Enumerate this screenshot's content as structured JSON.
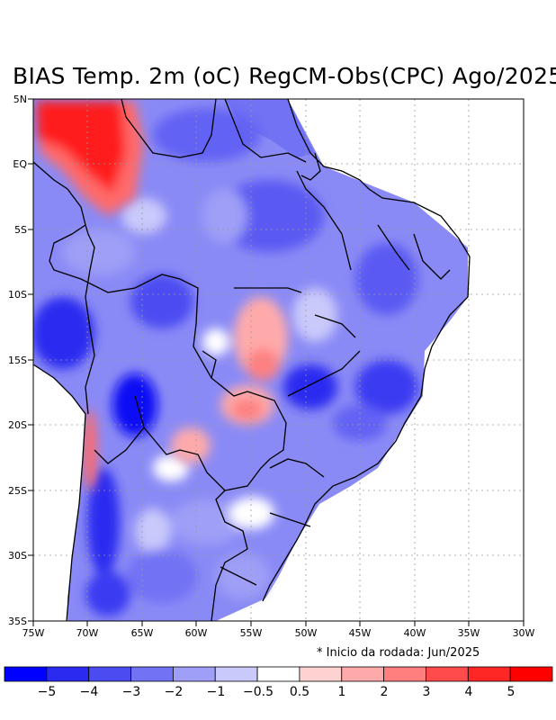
{
  "title": "BIAS Temp. 2m (oC) RegCM-Obs(CPC) Ago/2025",
  "note": "* Inicio da rodada: Jun/2025",
  "lat_labels": [
    "5N",
    "EQ",
    "5S",
    "10S",
    "15S",
    "20S",
    "25S",
    "30S",
    "35S"
  ],
  "lon_labels": [
    "75W",
    "70W",
    "65W",
    "60W",
    "55W",
    "50W",
    "45W",
    "40W",
    "35W",
    "30W"
  ],
  "colorbar": {
    "labels": [
      "−5",
      "−4",
      "−3",
      "−2",
      "−1",
      "−0.5",
      "0.5",
      "1",
      "2",
      "3",
      "4",
      "5"
    ],
    "colors": [
      "#0000ff",
      "#2a2af0",
      "#4b4bf2",
      "#7272f5",
      "#9f9ff7",
      "#c9c9fb",
      "#ffffff",
      "#ffd2d2",
      "#ffaaaa",
      "#ff7f7f",
      "#ff4b4b",
      "#ff2626",
      "#ff0000"
    ]
  }
}
